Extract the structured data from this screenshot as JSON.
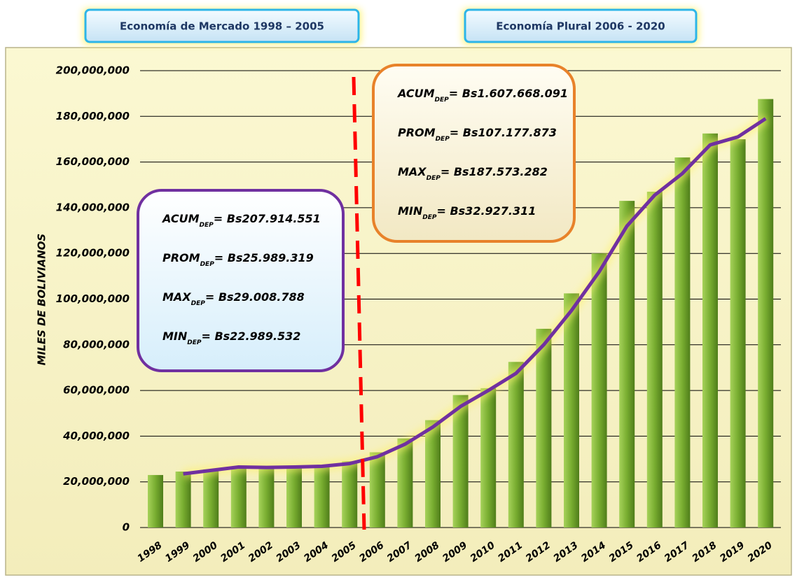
{
  "headers": [
    "Economía de Mercado 1998 – 2005",
    "Economía Plural 2006 - 2020"
  ],
  "chart_data": {
    "type": "bar",
    "y_label": "MILES DE BOLIVIANOS",
    "categories": [
      "1998",
      "1999",
      "2000",
      "2001",
      "2002",
      "2003",
      "2004",
      "2005",
      "2006",
      "2007",
      "2008",
      "2009",
      "2010",
      "2011",
      "2012",
      "2013",
      "2014",
      "2015",
      "2016",
      "2017",
      "2018",
      "2019",
      "2020"
    ],
    "series": [
      {
        "type": "bar",
        "color": "#78ad30",
        "values": [
          22989532,
          24500000,
          25500000,
          26500000,
          26000000,
          26500000,
          27300000,
          29008788,
          32927311,
          39000000,
          47000000,
          58000000,
          61000000,
          72500000,
          87000000,
          102500000,
          120000000,
          143000000,
          147000000,
          162000000,
          172500000,
          170000000,
          187573282
        ]
      },
      {
        "type": "line",
        "color": "#7030a0",
        "values": [
          null,
          23500000,
          25000000,
          26500000,
          26300000,
          26500000,
          26800000,
          28000000,
          31000000,
          36500000,
          44000000,
          53000000,
          60000000,
          67500000,
          80000000,
          95000000,
          112000000,
          132000000,
          145500000,
          155000000,
          167500000,
          171000000,
          179000000
        ]
      }
    ],
    "ylim": [
      0,
      200000000
    ],
    "yticks": [
      0,
      {
        "value": 20000000,
        "label": "20,000,000"
      },
      {
        "value": 40000000,
        "label": "40,000,000"
      },
      {
        "value": 60000000,
        "label": "60,000,000"
      },
      {
        "value": 80000000,
        "label": "80,000,000"
      },
      {
        "value": 100000000,
        "label": "100,000,000"
      },
      {
        "value": 120000000,
        "label": "120,000,000"
      },
      {
        "value": 140000000,
        "label": "140,000,000"
      },
      {
        "value": 160000000,
        "label": "160,000,000"
      },
      {
        "value": 180000000,
        "label": "180,000,000"
      },
      {
        "value": 200000000,
        "label": "200,000,000"
      }
    ],
    "grid": true,
    "annotations": [
      [
        {
          "label": "ACUM",
          "sub": "DEP",
          "text": "= Bs207.914.551"
        },
        {
          "label": "PROM",
          "sub": "DEP",
          "text": "= Bs25.989.319"
        },
        {
          "label": "MAX",
          "sub": "DEP",
          "text": "= Bs29.008.788"
        },
        {
          "label": "MIN",
          "sub": "DEP",
          "text": "= Bs22.989.532"
        }
      ],
      [
        {
          "label": "ACUM",
          "sub": "DEP",
          "text": "= Bs1.607.668.091"
        },
        {
          "label": "PROM",
          "sub": "DEP",
          "text": "= Bs107.177.873"
        },
        {
          "label": "MAX",
          "sub": "DEP",
          "text": "= Bs187.573.282"
        },
        {
          "label": "MIN",
          "sub": "DEP",
          "text": "= Bs32.927.311"
        }
      ]
    ]
  }
}
